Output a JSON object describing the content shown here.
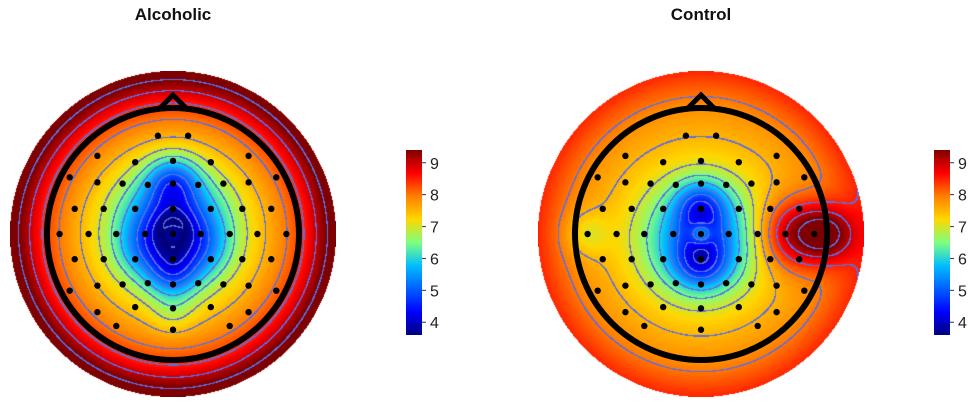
{
  "chart_data": [
    {
      "type": "heatmap",
      "title": "Alcoholic",
      "colorbar": {
        "ticks": [
          4,
          5,
          6,
          7,
          8,
          9
        ],
        "min": 3.6,
        "max": 9.4
      },
      "blobs": [
        {
          "x": 0,
          "y": -0.05,
          "a": -2.8,
          "s": 0.28
        },
        {
          "x": 0,
          "y": -0.42,
          "a": -1.4,
          "s": 0.14
        },
        {
          "x": 0,
          "y": -0.02,
          "a": -1.2,
          "s": 0.1
        },
        {
          "x": 0,
          "y": 0.3,
          "a": -1.3,
          "s": 0.14
        },
        {
          "x": 0,
          "y": 0.0,
          "a": 1.2,
          "s": 0.055
        },
        {
          "x": -0.25,
          "y": 0.12,
          "a": -0.5,
          "s": 0.15
        },
        {
          "x": 0.25,
          "y": 0.12,
          "a": -0.5,
          "s": 0.15
        },
        {
          "x": 0,
          "y": 0.62,
          "a": -0.4,
          "s": 0.12
        }
      ],
      "base": {
        "center": 7.0,
        "edge": 9.6,
        "power": 2.6,
        "outsideBoost": 0.4
      },
      "electrodes": [
        [
          -0.12,
          -0.78
        ],
        [
          0.12,
          -0.78
        ],
        [
          -0.6,
          -0.62
        ],
        [
          -0.3,
          -0.57
        ],
        [
          0,
          -0.58
        ],
        [
          0.3,
          -0.57
        ],
        [
          0.6,
          -0.62
        ],
        [
          -0.82,
          -0.45
        ],
        [
          -0.6,
          -0.41
        ],
        [
          -0.4,
          -0.4
        ],
        [
          -0.2,
          -0.39
        ],
        [
          0,
          -0.4
        ],
        [
          0.2,
          -0.39
        ],
        [
          0.4,
          -0.4
        ],
        [
          0.6,
          -0.41
        ],
        [
          0.82,
          -0.45
        ],
        [
          -0.78,
          -0.2
        ],
        [
          -0.55,
          -0.2
        ],
        [
          -0.3,
          -0.2
        ],
        [
          0,
          -0.2
        ],
        [
          0.3,
          -0.2
        ],
        [
          0.55,
          -0.2
        ],
        [
          0.78,
          -0.2
        ],
        [
          -0.9,
          0
        ],
        [
          -0.67,
          0
        ],
        [
          -0.45,
          0
        ],
        [
          -0.22,
          0
        ],
        [
          0,
          0
        ],
        [
          0.22,
          0
        ],
        [
          0.45,
          0
        ],
        [
          0.67,
          0
        ],
        [
          0.9,
          0
        ],
        [
          -0.78,
          0.2
        ],
        [
          -0.55,
          0.2
        ],
        [
          -0.3,
          0.2
        ],
        [
          0,
          0.2
        ],
        [
          0.3,
          0.2
        ],
        [
          0.55,
          0.2
        ],
        [
          0.78,
          0.2
        ],
        [
          -0.82,
          0.45
        ],
        [
          -0.6,
          0.41
        ],
        [
          -0.4,
          0.4
        ],
        [
          -0.2,
          0.39
        ],
        [
          0,
          0.4
        ],
        [
          0.2,
          0.39
        ],
        [
          0.4,
          0.4
        ],
        [
          0.6,
          0.41
        ],
        [
          0.82,
          0.45
        ],
        [
          -0.6,
          0.62
        ],
        [
          -0.3,
          0.58
        ],
        [
          0,
          0.59
        ],
        [
          0.3,
          0.58
        ],
        [
          0.6,
          0.62
        ],
        [
          -0.45,
          0.73
        ],
        [
          0,
          0.76
        ],
        [
          0.45,
          0.73
        ]
      ]
    },
    {
      "type": "heatmap",
      "title": "Control",
      "colorbar": {
        "ticks": [
          4,
          5,
          6,
          7,
          8,
          9
        ],
        "min": 3.6,
        "max": 9.4
      },
      "blobs": [
        {
          "x": 0,
          "y": 0.05,
          "a": -2.2,
          "s": 0.3
        },
        {
          "x": 0,
          "y": -0.22,
          "a": -1.5,
          "s": 0.14
        },
        {
          "x": 0,
          "y": 0.22,
          "a": -1.4,
          "s": 0.14
        },
        {
          "x": 0,
          "y": 0.0,
          "a": 1.3,
          "s": 0.055
        },
        {
          "x": 0.72,
          "y": 0.0,
          "a": 1.6,
          "s": 0.2
        },
        {
          "x": 1.0,
          "y": 0.0,
          "a": 1.5,
          "s": 0.15
        },
        {
          "x": -0.9,
          "y": 0.0,
          "a": -0.6,
          "s": 0.12
        }
      ],
      "base": {
        "center": 7.2,
        "edge": 8.3,
        "power": 2.2,
        "outsideBoost": 0.2
      },
      "electrodes": [
        [
          -0.12,
          -0.78
        ],
        [
          0.12,
          -0.78
        ],
        [
          -0.6,
          -0.62
        ],
        [
          -0.3,
          -0.57
        ],
        [
          0,
          -0.58
        ],
        [
          0.3,
          -0.57
        ],
        [
          0.6,
          -0.62
        ],
        [
          -0.82,
          -0.45
        ],
        [
          -0.6,
          -0.41
        ],
        [
          -0.4,
          -0.4
        ],
        [
          -0.2,
          -0.39
        ],
        [
          0,
          -0.4
        ],
        [
          0.2,
          -0.39
        ],
        [
          0.4,
          -0.4
        ],
        [
          0.6,
          -0.41
        ],
        [
          0.82,
          -0.45
        ],
        [
          -0.78,
          -0.2
        ],
        [
          -0.55,
          -0.2
        ],
        [
          -0.3,
          -0.2
        ],
        [
          0,
          -0.2
        ],
        [
          0.3,
          -0.2
        ],
        [
          0.55,
          -0.2
        ],
        [
          0.78,
          -0.2
        ],
        [
          -0.9,
          0
        ],
        [
          -0.67,
          0
        ],
        [
          -0.45,
          0
        ],
        [
          -0.22,
          0
        ],
        [
          0,
          0
        ],
        [
          0.22,
          0
        ],
        [
          0.45,
          0
        ],
        [
          0.67,
          0
        ],
        [
          0.9,
          0
        ],
        [
          -0.78,
          0.2
        ],
        [
          -0.55,
          0.2
        ],
        [
          -0.3,
          0.2
        ],
        [
          0,
          0.2
        ],
        [
          0.3,
          0.2
        ],
        [
          0.55,
          0.2
        ],
        [
          0.78,
          0.2
        ],
        [
          -0.82,
          0.45
        ],
        [
          -0.6,
          0.41
        ],
        [
          -0.4,
          0.4
        ],
        [
          -0.2,
          0.39
        ],
        [
          0,
          0.4
        ],
        [
          0.2,
          0.39
        ],
        [
          0.4,
          0.4
        ],
        [
          0.6,
          0.41
        ],
        [
          0.82,
          0.45
        ],
        [
          -0.6,
          0.62
        ],
        [
          -0.3,
          0.58
        ],
        [
          0,
          0.59
        ],
        [
          0.3,
          0.58
        ],
        [
          0.6,
          0.62
        ],
        [
          -0.45,
          0.73
        ],
        [
          0,
          0.76
        ],
        [
          0.45,
          0.73
        ]
      ]
    }
  ]
}
